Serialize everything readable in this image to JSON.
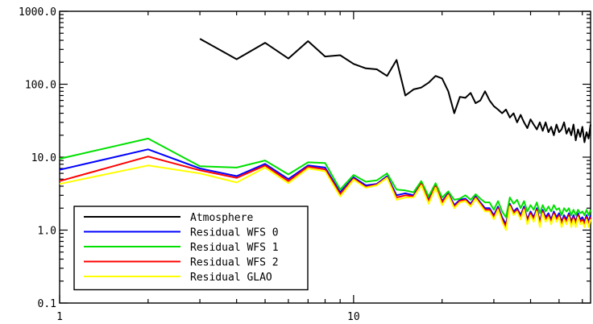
{
  "chart_data": {
    "type": "line",
    "xscale": "log",
    "yscale": "log",
    "xlim": [
      1,
      64
    ],
    "ylim": [
      0.1,
      1000
    ],
    "x_ticks": [
      {
        "value": 1,
        "label": "1"
      },
      {
        "value": 10,
        "label": "10"
      }
    ],
    "y_ticks": [
      {
        "value": 0.1,
        "label": "0.1"
      },
      {
        "value": 1,
        "label": "1.0"
      },
      {
        "value": 10,
        "label": "10.0"
      },
      {
        "value": 100,
        "label": "100.0"
      },
      {
        "value": 1000,
        "label": "1000.0"
      }
    ],
    "title": "",
    "xlabel": "",
    "ylabel": "",
    "legend_position": "bottom-left",
    "grid": false,
    "series": [
      {
        "name": "Atmosphere",
        "color": "#000000",
        "x": [
          3,
          4,
          5,
          6,
          7,
          8,
          9,
          10,
          11,
          12,
          13,
          14,
          15,
          16,
          17,
          18,
          19,
          20,
          21,
          22,
          23,
          24,
          25,
          26,
          27,
          28,
          29,
          30,
          31,
          32,
          33,
          34,
          35,
          36,
          37,
          38,
          39,
          40,
          41,
          42,
          43,
          44,
          45,
          46,
          47,
          48,
          49,
          50,
          51,
          52,
          53,
          54,
          55,
          56,
          57,
          58,
          59,
          60,
          61,
          62,
          63,
          64
        ],
        "y": [
          420,
          220,
          370,
          225,
          390,
          240,
          250,
          190,
          165,
          160,
          130,
          215,
          70,
          85,
          90,
          105,
          130,
          120,
          80,
          40,
          67,
          65,
          76,
          55,
          60,
          80,
          60,
          50,
          45,
          40,
          45,
          35,
          40,
          30,
          38,
          30,
          25,
          33,
          28,
          24,
          30,
          23,
          30,
          22,
          26,
          20,
          28,
          22,
          24,
          30,
          21,
          25,
          20,
          28,
          17,
          24,
          19,
          26,
          16,
          22,
          18,
          28
        ]
      },
      {
        "name": "Residual WFS 0",
        "color": "#0000ff",
        "x": [
          1,
          2,
          3,
          4,
          5,
          6,
          7,
          8,
          9,
          10,
          11,
          12,
          13,
          14,
          15,
          16,
          17,
          18,
          19,
          20,
          21,
          22,
          23,
          24,
          25,
          26,
          27,
          28,
          29,
          30,
          31,
          32,
          33,
          34,
          35,
          36,
          37,
          38,
          39,
          40,
          41,
          42,
          43,
          44,
          45,
          46,
          47,
          48,
          49,
          50,
          51,
          52,
          53,
          54,
          55,
          56,
          57,
          58,
          59,
          60,
          61,
          62,
          63,
          64
        ],
        "y": [
          6.7,
          12.8,
          7.0,
          5.5,
          8.1,
          5.0,
          7.7,
          7.2,
          3.3,
          5.3,
          4.1,
          4.3,
          5.5,
          3.0,
          3.2,
          3.0,
          4.4,
          2.6,
          4.1,
          2.5,
          3.2,
          2.2,
          2.6,
          2.7,
          2.3,
          2.9,
          2.4,
          2.0,
          2.0,
          1.6,
          2.1,
          1.5,
          1.2,
          2.3,
          1.8,
          2.0,
          1.6,
          2.1,
          1.4,
          1.8,
          1.5,
          2.0,
          1.3,
          1.9,
          1.5,
          1.7,
          1.4,
          1.8,
          1.5,
          1.7,
          1.3,
          1.6,
          1.4,
          1.7,
          1.3,
          1.6,
          1.3,
          1.7,
          1.4,
          1.5,
          1.3,
          1.6,
          1.3,
          1.6
        ]
      },
      {
        "name": "Residual WFS 1",
        "color": "#00e000",
        "x": [
          1,
          2,
          3,
          4,
          5,
          6,
          7,
          8,
          9,
          10,
          11,
          12,
          13,
          14,
          15,
          16,
          17,
          18,
          19,
          20,
          21,
          22,
          23,
          24,
          25,
          26,
          27,
          28,
          29,
          30,
          31,
          32,
          33,
          34,
          35,
          36,
          37,
          38,
          39,
          40,
          41,
          42,
          43,
          44,
          45,
          46,
          47,
          48,
          49,
          50,
          51,
          52,
          53,
          54,
          55,
          56,
          57,
          58,
          59,
          60,
          61,
          62,
          63,
          64
        ],
        "y": [
          9.5,
          18.0,
          7.5,
          7.2,
          9.0,
          5.8,
          8.5,
          8.3,
          3.6,
          5.7,
          4.6,
          4.8,
          6.0,
          3.6,
          3.5,
          3.3,
          4.7,
          2.9,
          4.4,
          2.8,
          3.4,
          2.6,
          2.7,
          3.0,
          2.6,
          3.1,
          2.7,
          2.4,
          2.4,
          1.9,
          2.5,
          1.8,
          1.5,
          2.8,
          2.3,
          2.6,
          2.0,
          2.5,
          1.8,
          2.2,
          1.9,
          2.4,
          1.7,
          2.2,
          1.8,
          2.1,
          1.8,
          2.2,
          1.9,
          2.0,
          1.6,
          2.0,
          1.8,
          2.0,
          1.6,
          1.9,
          1.6,
          1.9,
          1.7,
          1.8,
          1.6,
          1.9,
          1.6,
          1.9
        ]
      },
      {
        "name": "Residual WFS 2",
        "color": "#ff0000",
        "x": [
          1,
          2,
          3,
          4,
          5,
          6,
          7,
          8,
          9,
          10,
          11,
          12,
          13,
          14,
          15,
          16,
          17,
          18,
          19,
          20,
          21,
          22,
          23,
          24,
          25,
          26,
          27,
          28,
          29,
          30,
          31,
          32,
          33,
          34,
          35,
          36,
          37,
          38,
          39,
          40,
          41,
          42,
          43,
          44,
          45,
          46,
          47,
          48,
          49,
          50,
          51,
          52,
          53,
          54,
          55,
          56,
          57,
          58,
          59,
          60,
          61,
          62,
          63,
          64
        ],
        "y": [
          4.7,
          10.2,
          6.6,
          5.2,
          7.7,
          4.7,
          7.4,
          6.8,
          3.1,
          5.1,
          3.9,
          4.2,
          5.3,
          2.8,
          3.0,
          2.9,
          4.3,
          2.5,
          4.0,
          2.4,
          3.1,
          2.1,
          2.5,
          2.6,
          2.2,
          2.8,
          2.3,
          1.9,
          1.9,
          1.5,
          2.0,
          1.4,
          1.1,
          2.2,
          1.7,
          1.9,
          1.5,
          2.0,
          1.3,
          1.7,
          1.4,
          1.9,
          1.2,
          1.8,
          1.4,
          1.6,
          1.3,
          1.7,
          1.4,
          1.6,
          1.2,
          1.5,
          1.3,
          1.6,
          1.2,
          1.5,
          1.2,
          1.6,
          1.3,
          1.4,
          1.2,
          1.5,
          1.2,
          1.5
        ]
      },
      {
        "name": "Residual GLAO",
        "color": "#ffff00",
        "x": [
          1,
          2,
          3,
          4,
          5,
          6,
          7,
          8,
          9,
          10,
          11,
          12,
          13,
          14,
          15,
          16,
          17,
          18,
          19,
          20,
          21,
          22,
          23,
          24,
          25,
          26,
          27,
          28,
          29,
          30,
          31,
          32,
          33,
          34,
          35,
          36,
          37,
          38,
          39,
          40,
          41,
          42,
          43,
          44,
          45,
          46,
          47,
          48,
          49,
          50,
          51,
          52,
          53,
          54,
          55,
          56,
          57,
          58,
          59,
          60,
          61,
          62,
          63,
          64
        ],
        "y": [
          4.3,
          7.7,
          6.0,
          4.5,
          7.2,
          4.4,
          7.0,
          6.4,
          2.9,
          4.9,
          3.8,
          4.1,
          5.2,
          2.6,
          2.8,
          2.8,
          4.1,
          2.3,
          3.8,
          2.2,
          3.0,
          2.0,
          2.4,
          2.5,
          2.1,
          2.7,
          2.2,
          1.8,
          1.8,
          1.4,
          1.9,
          1.3,
          1.0,
          2.1,
          1.6,
          1.8,
          1.4,
          1.9,
          1.2,
          1.6,
          1.3,
          1.8,
          1.1,
          1.7,
          1.3,
          1.5,
          1.2,
          1.6,
          1.3,
          1.5,
          1.1,
          1.4,
          1.2,
          1.5,
          1.1,
          1.4,
          1.1,
          1.5,
          1.2,
          1.3,
          1.1,
          1.4,
          1.1,
          1.4
        ]
      }
    ]
  }
}
